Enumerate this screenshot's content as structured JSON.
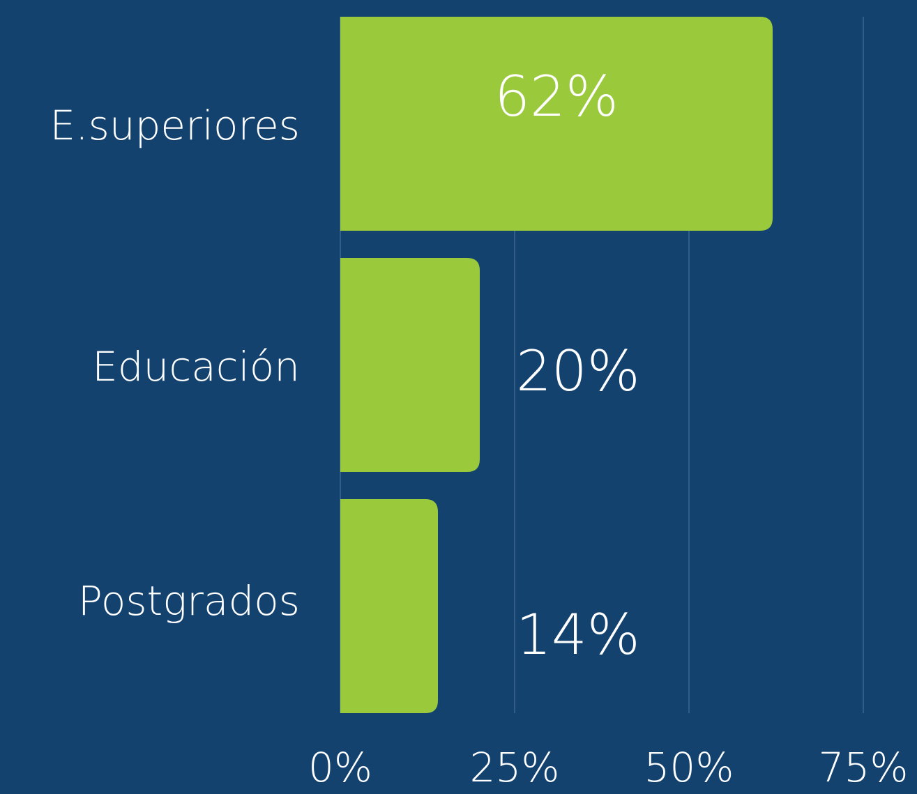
{
  "chart_data": {
    "type": "hbar",
    "categories": [
      "E.superiores",
      "Educación",
      "Postgrados"
    ],
    "values": [
      62,
      20,
      14
    ],
    "value_labels": [
      "62%",
      "20%",
      "14%"
    ],
    "color": "#9aca3c",
    "xlim": [
      0,
      82.7
    ],
    "xticks": [
      {
        "value": 0,
        "label": "0%"
      },
      {
        "value": 25,
        "label": "25%"
      },
      {
        "value": 50,
        "label": "50%"
      },
      {
        "value": 75,
        "label": "75%"
      }
    ],
    "grid": true
  }
}
